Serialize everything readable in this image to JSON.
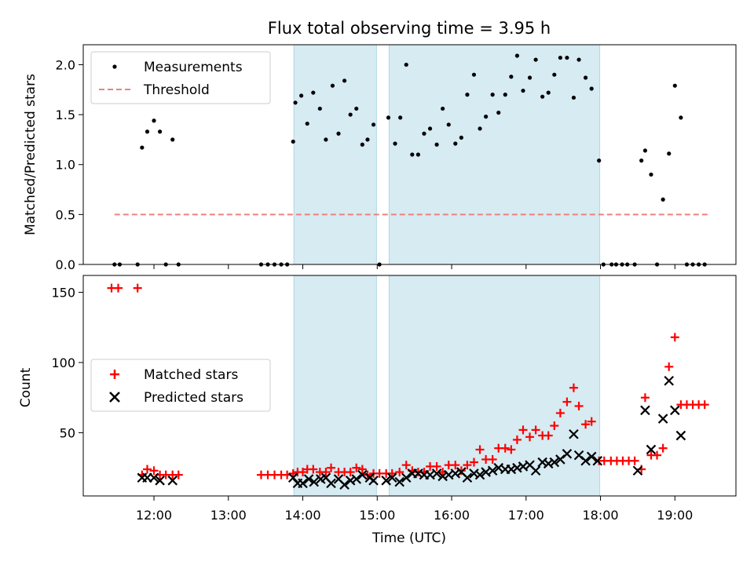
{
  "chart_data": [
    {
      "type": "scatter",
      "title": "Flux total observing time = 3.95 h",
      "ylabel": "Matched/Predicted stars",
      "xlabel": "",
      "xlim": [
        11.05,
        19.82
      ],
      "ylim": [
        0,
        2.2
      ],
      "y_ticks": [
        "0.0",
        "0.5",
        "1.0",
        "1.5",
        "2.0"
      ],
      "y_tick_values": [
        0,
        0.5,
        1.0,
        1.5,
        2.0
      ],
      "legend_position": "upper-left",
      "shaded_intervals": [
        [
          13.88,
          14.99
        ],
        [
          15.16,
          17.99
        ]
      ],
      "threshold": {
        "name": "Threshold",
        "value": 0.5,
        "x_range": [
          11.47,
          19.45
        ],
        "color": "#f08080"
      },
      "series": [
        {
          "name": "Measurements",
          "color": "#000000",
          "points": [
            [
              11.47,
              0.0
            ],
            [
              11.54,
              0.0
            ],
            [
              11.78,
              0.0
            ],
            [
              11.84,
              1.17
            ],
            [
              11.91,
              1.33
            ],
            [
              12.0,
              1.44
            ],
            [
              12.08,
              1.33
            ],
            [
              12.16,
              0.0
            ],
            [
              12.25,
              1.25
            ],
            [
              12.33,
              0.0
            ],
            [
              13.44,
              0.0
            ],
            [
              13.53,
              0.0
            ],
            [
              13.62,
              0.0
            ],
            [
              13.71,
              0.0
            ],
            [
              13.79,
              0.0
            ],
            [
              13.87,
              1.23
            ],
            [
              13.9,
              1.62
            ],
            [
              13.98,
              1.69
            ],
            [
              14.06,
              1.41
            ],
            [
              14.14,
              1.72
            ],
            [
              14.23,
              1.56
            ],
            [
              14.31,
              1.25
            ],
            [
              14.4,
              1.79
            ],
            [
              14.48,
              1.31
            ],
            [
              14.56,
              1.84
            ],
            [
              14.64,
              1.5
            ],
            [
              14.72,
              1.56
            ],
            [
              14.8,
              1.2
            ],
            [
              14.87,
              1.25
            ],
            [
              14.95,
              1.4
            ],
            [
              15.03,
              0.0
            ],
            [
              15.15,
              1.47
            ],
            [
              15.24,
              1.21
            ],
            [
              15.31,
              1.47
            ],
            [
              15.39,
              2.0
            ],
            [
              15.47,
              1.1
            ],
            [
              15.55,
              1.1
            ],
            [
              15.63,
              1.31
            ],
            [
              15.71,
              1.36
            ],
            [
              15.8,
              1.2
            ],
            [
              15.88,
              1.56
            ],
            [
              15.96,
              1.4
            ],
            [
              16.05,
              1.21
            ],
            [
              16.13,
              1.27
            ],
            [
              16.21,
              1.7
            ],
            [
              16.3,
              1.9
            ],
            [
              16.38,
              1.36
            ],
            [
              16.46,
              1.48
            ],
            [
              16.55,
              1.7
            ],
            [
              16.63,
              1.52
            ],
            [
              16.72,
              1.7
            ],
            [
              16.8,
              1.88
            ],
            [
              16.88,
              2.09
            ],
            [
              16.96,
              1.74
            ],
            [
              17.05,
              1.87
            ],
            [
              17.13,
              2.05
            ],
            [
              17.22,
              1.68
            ],
            [
              17.3,
              1.72
            ],
            [
              17.38,
              1.9
            ],
            [
              17.46,
              2.07
            ],
            [
              17.55,
              2.07
            ],
            [
              17.64,
              1.67
            ],
            [
              17.71,
              2.05
            ],
            [
              17.8,
              1.87
            ],
            [
              17.88,
              1.76
            ],
            [
              17.98,
              1.04
            ],
            [
              18.04,
              0.0
            ],
            [
              18.15,
              0.0
            ],
            [
              18.21,
              0.0
            ],
            [
              18.29,
              0.0
            ],
            [
              18.36,
              0.0
            ],
            [
              18.46,
              0.0
            ],
            [
              18.55,
              1.04
            ],
            [
              18.6,
              1.14
            ],
            [
              18.68,
              0.9
            ],
            [
              18.76,
              0.0
            ],
            [
              18.84,
              0.65
            ],
            [
              18.92,
              1.11
            ],
            [
              19.0,
              1.79
            ],
            [
              19.08,
              1.47
            ],
            [
              19.16,
              0.0
            ],
            [
              19.24,
              0.0
            ],
            [
              19.32,
              0.0
            ],
            [
              19.4,
              0.0
            ]
          ]
        }
      ]
    },
    {
      "type": "scatter",
      "title": "",
      "ylabel": "Count",
      "xlabel": "Time (UTC)",
      "xlim": [
        11.05,
        19.82
      ],
      "ylim": [
        5,
        162
      ],
      "y_ticks": [
        "50",
        "100",
        "150"
      ],
      "y_tick_values": [
        50,
        100,
        150
      ],
      "x_ticks": [
        "12:00",
        "13:00",
        "14:00",
        "15:00",
        "16:00",
        "17:00",
        "18:00",
        "19:00"
      ],
      "x_tick_values": [
        12,
        13,
        14,
        15,
        16,
        17,
        18,
        19
      ],
      "legend_position": "center-left",
      "shaded_intervals": [
        [
          13.88,
          14.99
        ],
        [
          15.16,
          17.99
        ]
      ],
      "series": [
        {
          "name": "Matched stars",
          "marker": "plus",
          "color": "#ff0000",
          "points": [
            [
              11.43,
              153
            ],
            [
              11.52,
              153
            ],
            [
              11.78,
              153
            ],
            [
              11.84,
              20
            ],
            [
              11.91,
              24
            ],
            [
              12.0,
              23
            ],
            [
              12.08,
              20
            ],
            [
              12.16,
              20
            ],
            [
              12.25,
              20
            ],
            [
              12.33,
              20
            ],
            [
              13.44,
              20
            ],
            [
              13.53,
              20
            ],
            [
              13.62,
              20
            ],
            [
              13.71,
              20
            ],
            [
              13.79,
              20
            ],
            [
              13.87,
              21
            ],
            [
              13.93,
              22
            ],
            [
              14.0,
              22
            ],
            [
              14.06,
              24
            ],
            [
              14.14,
              24
            ],
            [
              14.23,
              22
            ],
            [
              14.31,
              22
            ],
            [
              14.38,
              25
            ],
            [
              14.48,
              22
            ],
            [
              14.56,
              22
            ],
            [
              14.64,
              22
            ],
            [
              14.72,
              25
            ],
            [
              14.8,
              24
            ],
            [
              14.87,
              20
            ],
            [
              14.95,
              21
            ],
            [
              15.03,
              21
            ],
            [
              15.12,
              21
            ],
            [
              15.2,
              21
            ],
            [
              15.3,
              22
            ],
            [
              15.39,
              27
            ],
            [
              15.47,
              23
            ],
            [
              15.55,
              22
            ],
            [
              15.63,
              22
            ],
            [
              15.71,
              26
            ],
            [
              15.8,
              26
            ],
            [
              15.88,
              22
            ],
            [
              15.96,
              27
            ],
            [
              16.05,
              27
            ],
            [
              16.13,
              23
            ],
            [
              16.21,
              27
            ],
            [
              16.3,
              29
            ],
            [
              16.38,
              38
            ],
            [
              16.46,
              31
            ],
            [
              16.55,
              31
            ],
            [
              16.63,
              39
            ],
            [
              16.72,
              39
            ],
            [
              16.8,
              38
            ],
            [
              16.88,
              45
            ],
            [
              16.96,
              52
            ],
            [
              17.05,
              47
            ],
            [
              17.13,
              52
            ],
            [
              17.22,
              48
            ],
            [
              17.3,
              48
            ],
            [
              17.38,
              55
            ],
            [
              17.46,
              64
            ],
            [
              17.55,
              72
            ],
            [
              17.64,
              82
            ],
            [
              17.71,
              69
            ],
            [
              17.8,
              56
            ],
            [
              17.88,
              58
            ],
            [
              17.98,
              30
            ],
            [
              18.05,
              30
            ],
            [
              18.14,
              30
            ],
            [
              18.22,
              30
            ],
            [
              18.3,
              30
            ],
            [
              18.38,
              30
            ],
            [
              18.46,
              30
            ],
            [
              18.55,
              24
            ],
            [
              18.6,
              75
            ],
            [
              18.68,
              34
            ],
            [
              18.76,
              34
            ],
            [
              18.84,
              39
            ],
            [
              18.92,
              97
            ],
            [
              19.0,
              118
            ],
            [
              19.08,
              70
            ],
            [
              19.16,
              70
            ],
            [
              19.24,
              70
            ],
            [
              19.32,
              70
            ],
            [
              19.4,
              70
            ]
          ]
        },
        {
          "name": "Predicted stars",
          "marker": "x",
          "color": "#000000",
          "points": [
            [
              11.84,
              18
            ],
            [
              11.91,
              18
            ],
            [
              12.0,
              18
            ],
            [
              12.08,
              16
            ],
            [
              12.25,
              16
            ],
            [
              13.87,
              18
            ],
            [
              13.93,
              14
            ],
            [
              14.0,
              14
            ],
            [
              14.08,
              17
            ],
            [
              14.15,
              15
            ],
            [
              14.24,
              17
            ],
            [
              14.31,
              18
            ],
            [
              14.38,
              14
            ],
            [
              14.48,
              17
            ],
            [
              14.56,
              13
            ],
            [
              14.64,
              16
            ],
            [
              14.72,
              17
            ],
            [
              14.8,
              20
            ],
            [
              14.9,
              18
            ],
            [
              14.95,
              16
            ],
            [
              15.12,
              16
            ],
            [
              15.2,
              18
            ],
            [
              15.3,
              15
            ],
            [
              15.39,
              18
            ],
            [
              15.47,
              21
            ],
            [
              15.55,
              21
            ],
            [
              15.63,
              20
            ],
            [
              15.71,
              20
            ],
            [
              15.8,
              21
            ],
            [
              15.88,
              19
            ],
            [
              15.96,
              20
            ],
            [
              16.05,
              21
            ],
            [
              16.13,
              22
            ],
            [
              16.21,
              18
            ],
            [
              16.3,
              21
            ],
            [
              16.38,
              20
            ],
            [
              16.46,
              22
            ],
            [
              16.55,
              23
            ],
            [
              16.63,
              25
            ],
            [
              16.72,
              24
            ],
            [
              16.8,
              24
            ],
            [
              16.88,
              25
            ],
            [
              16.96,
              26
            ],
            [
              17.05,
              27
            ],
            [
              17.13,
              23
            ],
            [
              17.22,
              29
            ],
            [
              17.3,
              28
            ],
            [
              17.38,
              29
            ],
            [
              17.46,
              31
            ],
            [
              17.55,
              35
            ],
            [
              17.64,
              49
            ],
            [
              17.71,
              34
            ],
            [
              17.8,
              30
            ],
            [
              17.88,
              33
            ],
            [
              17.96,
              30
            ],
            [
              18.5,
              23
            ],
            [
              18.6,
              66
            ],
            [
              18.68,
              38
            ],
            [
              18.84,
              60
            ],
            [
              18.92,
              87
            ],
            [
              19.0,
              66
            ],
            [
              19.08,
              48
            ]
          ]
        }
      ]
    }
  ]
}
